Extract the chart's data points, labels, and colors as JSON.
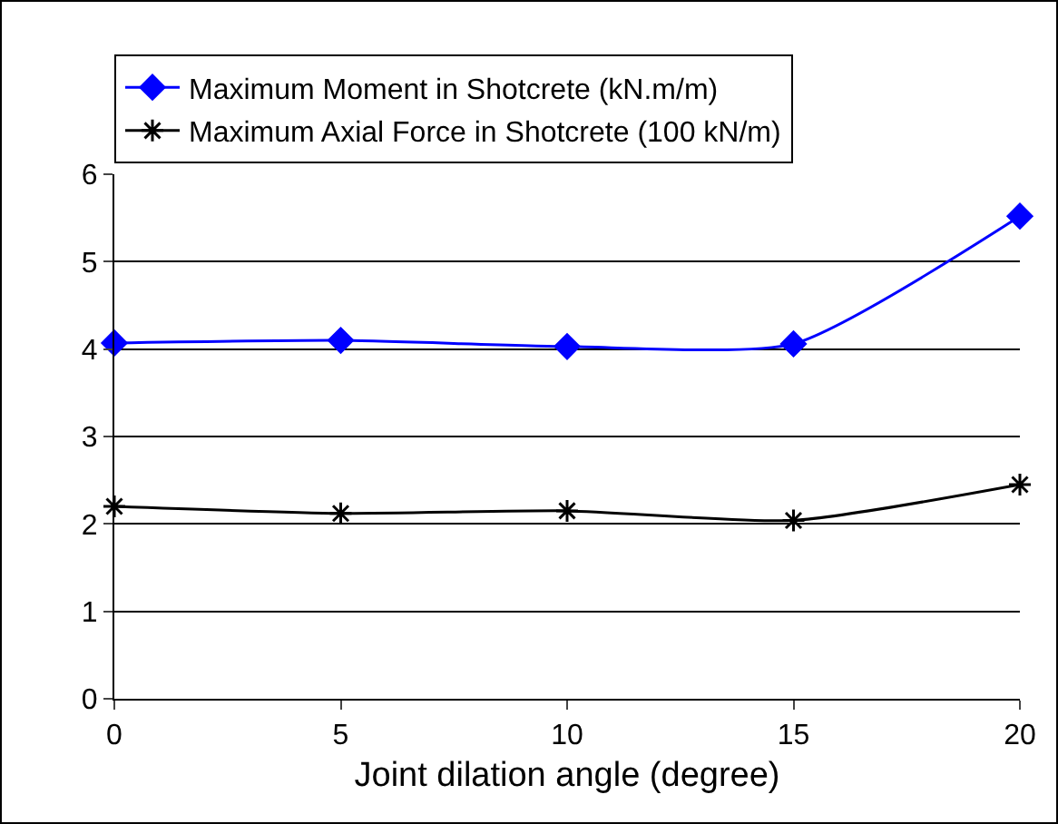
{
  "chart_data": {
    "type": "line",
    "xlabel": "Joint dilation angle (degree)",
    "x": [
      0,
      5,
      10,
      15,
      20
    ],
    "series": [
      {
        "name": "Maximum Moment in Shotcrete (kN.m/m)",
        "color": "#0000ff",
        "marker": "diamond",
        "values": [
          4.07,
          4.1,
          4.03,
          4.06,
          5.52
        ]
      },
      {
        "name": "Maximum Axial Force in Shotcrete (100 kN/m)",
        "color": "#000000",
        "marker": "cross",
        "values": [
          2.2,
          2.12,
          2.15,
          2.04,
          2.45
        ]
      }
    ],
    "xlim": [
      0,
      20
    ],
    "xticks": [
      0,
      5,
      10,
      15,
      20
    ],
    "ylim": [
      0,
      6
    ],
    "yticks": [
      0,
      1,
      2,
      3,
      4,
      5,
      6
    ],
    "grid": "y",
    "legend": "top",
    "line_style": "solid"
  }
}
